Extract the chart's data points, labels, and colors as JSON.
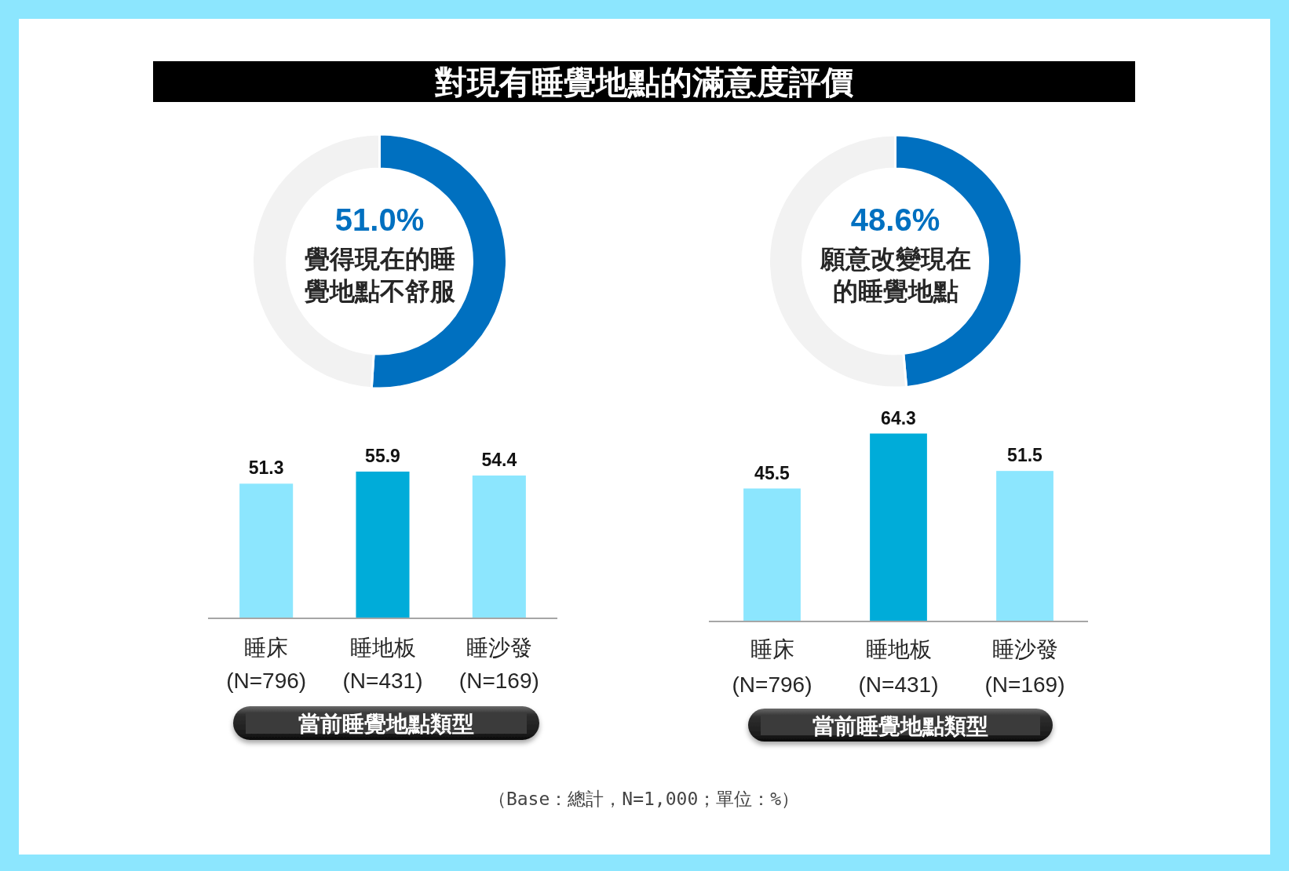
{
  "chart_data": [
    {
      "type": "donut",
      "title": "對現有睡覺地點的滿意度評價",
      "categories": [
        "覺得現在的睡覺地點不舒服",
        null
      ],
      "values": [
        51.0,
        49.0
      ],
      "colors": [
        "#0070c0",
        "#f2f2f2"
      ],
      "value_labels": [
        "51.0%",
        null
      ]
    },
    {
      "type": "donut",
      "categories": [
        "願意改變現在的睡覺地點",
        null
      ],
      "values": [
        48.6,
        51.4
      ],
      "colors": [
        "#0070c0",
        "#f2f2f2"
      ],
      "value_labels": [
        "48.6%",
        null
      ]
    },
    {
      "type": "bar",
      "categories": [
        "睡床\n(N=796)",
        "睡地板\n(N=431)",
        "睡沙發\n(N=169)"
      ],
      "values": [
        51.3,
        55.9,
        54.4
      ],
      "colors": [
        "#8ce6fe",
        "#00acd9",
        "#8ce6fe"
      ],
      "data_labels": true,
      "xlabel": "當前睡覺地點類型"
    },
    {
      "type": "bar",
      "categories": [
        "睡床\n(N=796)",
        "睡地板\n(N=431)",
        "睡沙發\n(N=169)"
      ],
      "values": [
        45.5,
        64.3,
        51.5
      ],
      "colors": [
        "#8ce6fe",
        "#00acd9",
        "#8ce6fe"
      ],
      "data_labels": true,
      "xlabel": "當前睡覺地點類型",
      "annotations": [
        "（Base：總計，N=1,000；單位：%）"
      ]
    }
  ]
}
